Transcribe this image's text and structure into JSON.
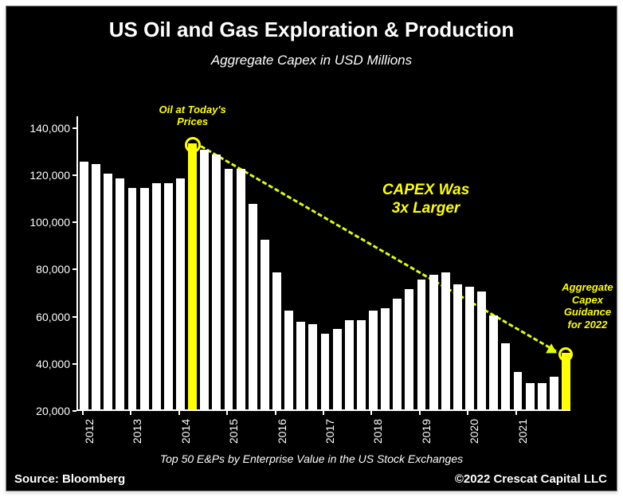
{
  "title": "US Oil and Gas Exploration & Production",
  "subtitle": "Aggregate Capex in USD Millions",
  "caption": "Top 50 E&Ps by Enterprise Value in the US Stock Exchanges",
  "source_label": "Source: Bloomberg",
  "copyright": "©2022 Crescat Capital LLC",
  "colors": {
    "background": "#000000",
    "text": "#ffffff",
    "bar": "#ffffff",
    "highlight": "#ffff00",
    "arrow": "#dfff00"
  },
  "font": {
    "title_size": 26,
    "subtitle_size": 17,
    "axis_size": 14,
    "caption_size": 14,
    "footer_size": 15,
    "annotation_small": 13,
    "annotation_large": 19
  },
  "chart": {
    "type": "bar",
    "y_axis": {
      "min": 20000,
      "max": 145000,
      "ticks": [
        20000,
        40000,
        60000,
        80000,
        100000,
        120000,
        140000
      ],
      "tick_labels": [
        "20,000",
        "40,000",
        "60,000",
        "80,000",
        "100,000",
        "120,000",
        "140,000"
      ]
    },
    "x_axis": {
      "tick_labels": [
        "2012",
        "2013",
        "2014",
        "2015",
        "2016",
        "2017",
        "2018",
        "2019",
        "2020",
        "2021"
      ],
      "tick_positions": [
        0,
        4,
        8,
        12,
        16,
        20,
        24,
        28,
        32,
        36
      ]
    },
    "bar_count": 41,
    "bar_values": [
      125000,
      124000,
      120000,
      118000,
      114000,
      114000,
      116000,
      116000,
      118000,
      133000,
      130000,
      128000,
      122000,
      122000,
      107000,
      92000,
      78000,
      62000,
      57000,
      56000,
      52000,
      54000,
      58000,
      58000,
      62000,
      63000,
      67000,
      71000,
      75000,
      77000,
      78000,
      73000,
      72000,
      70000,
      60000,
      48000,
      36000,
      31000,
      31000,
      34000,
      44000
    ],
    "highlight_indices": [
      9,
      40
    ],
    "bar_gap_ratio": 0.28
  },
  "annotations": {
    "oil_today": {
      "text": "Oil at Today's\nPrices"
    },
    "capex_3x": {
      "text": "CAPEX Was\n3x Larger"
    },
    "guidance": {
      "text": "Aggregate\nCapex\nGuidance\nfor 2022"
    }
  }
}
